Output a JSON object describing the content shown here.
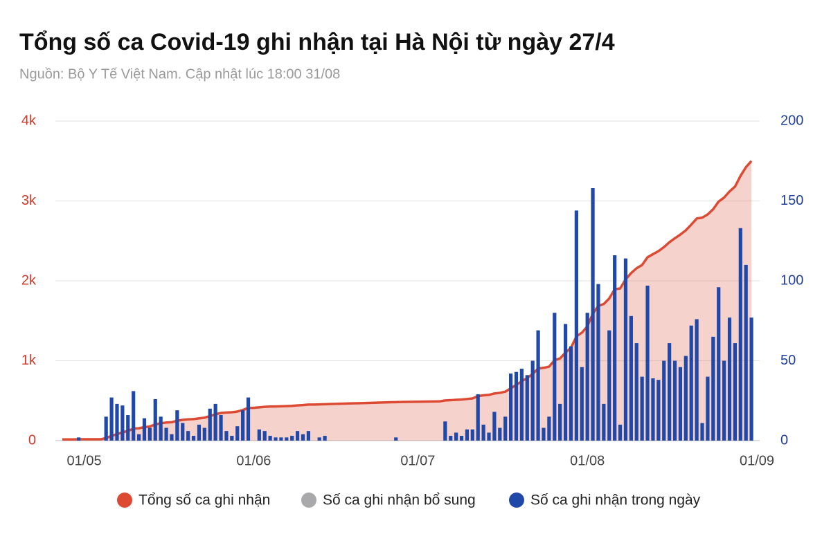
{
  "chart_data": {
    "type": "bar-line",
    "title": "Tổng số ca Covid-19 ghi nhận tại Hà Nội từ ngày 27/4",
    "subtitle": "Nguồn: Bộ Y Tế Việt Nam. Cập nhật lúc 18:00 31/08",
    "x": [
      "27/04",
      "28/04",
      "29/04",
      "30/04",
      "01/05",
      "02/05",
      "03/05",
      "04/05",
      "05/05",
      "06/05",
      "07/05",
      "08/05",
      "09/05",
      "10/05",
      "11/05",
      "12/05",
      "13/05",
      "14/05",
      "15/05",
      "16/05",
      "17/05",
      "18/05",
      "19/05",
      "20/05",
      "21/05",
      "22/05",
      "23/05",
      "24/05",
      "25/05",
      "26/05",
      "27/05",
      "28/05",
      "29/05",
      "30/05",
      "31/05",
      "01/06",
      "02/06",
      "03/06",
      "04/06",
      "05/06",
      "06/06",
      "07/06",
      "08/06",
      "09/06",
      "10/06",
      "11/06",
      "12/06",
      "13/06",
      "14/06",
      "15/06",
      "16/06",
      "17/06",
      "18/06",
      "19/06",
      "20/06",
      "21/06",
      "22/06",
      "23/06",
      "24/06",
      "25/06",
      "26/06",
      "27/06",
      "28/06",
      "29/06",
      "30/06",
      "01/07",
      "02/07",
      "03/07",
      "04/07",
      "05/07",
      "06/07",
      "07/07",
      "08/07",
      "09/07",
      "10/07",
      "11/07",
      "12/07",
      "13/07",
      "14/07",
      "15/07",
      "16/07",
      "17/07",
      "18/07",
      "19/07",
      "20/07",
      "21/07",
      "22/07",
      "23/07",
      "24/07",
      "25/07",
      "26/07",
      "27/07",
      "28/07",
      "29/07",
      "30/07",
      "31/07",
      "01/08",
      "02/08",
      "03/08",
      "04/08",
      "05/08",
      "06/08",
      "07/08",
      "08/08",
      "09/08",
      "10/08",
      "11/08",
      "12/08",
      "13/08",
      "14/08",
      "15/08",
      "16/08",
      "17/08",
      "18/08",
      "19/08",
      "20/08",
      "21/08",
      "22/08",
      "23/08",
      "24/08",
      "25/08",
      "26/08",
      "27/08",
      "28/08",
      "29/08",
      "30/08",
      "31/08"
    ],
    "xlim": [
      "27/04",
      "01/09"
    ],
    "xticks": [
      "01/05",
      "01/06",
      "01/07",
      "01/08",
      "01/09"
    ],
    "ylim": [
      0,
      4000
    ],
    "yticks": [
      0,
      {
        "value": 1000,
        "label": "1k"
      },
      {
        "value": 2000,
        "label": "2k"
      },
      {
        "value": 3000,
        "label": "3k"
      },
      {
        "value": 4000,
        "label": "4k"
      }
    ],
    "y2lim": [
      0,
      200
    ],
    "y2ticks": [
      0,
      50,
      100,
      150,
      200
    ],
    "grid": true,
    "legend": "bottom",
    "series": [
      {
        "name": "Tổng số ca ghi nhận",
        "color": "#dc4a33",
        "kind": "area-line",
        "axis": "y",
        "values": [
          15,
          15,
          15,
          17,
          17,
          17,
          17,
          17,
          32,
          59,
          82,
          104,
          120,
          151,
          155,
          169,
          177,
          203,
          218,
          226,
          230,
          249,
          260,
          266,
          269,
          279,
          287,
          307,
          330,
          346,
          352,
          355,
          364,
          383,
          410,
          410,
          417,
          423,
          426,
          428,
          430,
          432,
          435,
          441,
          445,
          451,
          451,
          453,
          456,
          458,
          460,
          462,
          464,
          466,
          468,
          470,
          472,
          474,
          476,
          478,
          480,
          482,
          484,
          485,
          486,
          487,
          488,
          489,
          490,
          491,
          503,
          506,
          511,
          514,
          521,
          528,
          557,
          567,
          572,
          590,
          598,
          613,
          655,
          698,
          743,
          784,
          834,
          903,
          911,
          926,
          1006,
          1029,
          1102,
          1161,
          1305,
          1351,
          1431,
          1589,
          1687,
          1710,
          1779,
          1895,
          1905,
          2019,
          2097,
          2158,
          2198,
          2295,
          2334,
          2372,
          2422,
          2483,
          2533,
          2579,
          2632,
          2704,
          2780,
          2791,
          2831,
          2896,
          2992,
          3042,
          3119,
          3180,
          3313,
          3423,
          3500
        ]
      },
      {
        "name": "Số ca ghi nhận bổ sung",
        "color": "#a9a9ab",
        "kind": "bar",
        "axis": "y2",
        "values": [
          0,
          0,
          0,
          0,
          0,
          0,
          0,
          0,
          0,
          0,
          0,
          0,
          0,
          0,
          0,
          0,
          0,
          0,
          0,
          0,
          0,
          0,
          0,
          0,
          0,
          0,
          0,
          0,
          0,
          0,
          0,
          0,
          0,
          0,
          0,
          0,
          0,
          0,
          0,
          0,
          0,
          0,
          0,
          0,
          0,
          0,
          0,
          0,
          0,
          0,
          0,
          0,
          0,
          0,
          0,
          0,
          0,
          0,
          0,
          0,
          0,
          0,
          0,
          0,
          0,
          0,
          0,
          0,
          0,
          0,
          0,
          0,
          0,
          0,
          0,
          0,
          0,
          0,
          0,
          0,
          0,
          0,
          0,
          0,
          0,
          0,
          0,
          0,
          0,
          0,
          0,
          0,
          0,
          0,
          0,
          0,
          0,
          0,
          0,
          0,
          0,
          0,
          0,
          0,
          0,
          0,
          0,
          0,
          0,
          0,
          0,
          0,
          0,
          0,
          0,
          0,
          0,
          0,
          0,
          0,
          0,
          0,
          0,
          0,
          0,
          0,
          0
        ]
      },
      {
        "name": "Số ca ghi nhận trong ngày",
        "color": "#1f48a8",
        "kind": "bar",
        "axis": "y2",
        "values": [
          0,
          0,
          0,
          2,
          0,
          0,
          0,
          0,
          15,
          27,
          23,
          22,
          16,
          31,
          4,
          14,
          8,
          26,
          15,
          8,
          4,
          19,
          11,
          6,
          3,
          10,
          8,
          20,
          23,
          16,
          6,
          3,
          9,
          19,
          27,
          0,
          7,
          6,
          3,
          2,
          2,
          2,
          3,
          6,
          4,
          6,
          0,
          2,
          3,
          0,
          0,
          0,
          0,
          0,
          0,
          0,
          0,
          0,
          0,
          0,
          0,
          2,
          0,
          0,
          0,
          0,
          0,
          0,
          0,
          0,
          12,
          3,
          5,
          3,
          7,
          7,
          29,
          10,
          5,
          18,
          8,
          15,
          42,
          43,
          45,
          41,
          50,
          69,
          8,
          15,
          80,
          23,
          73,
          59,
          144,
          46,
          80,
          158,
          98,
          23,
          69,
          116,
          10,
          114,
          78,
          61,
          40,
          97,
          39,
          38,
          50,
          61,
          50,
          46,
          53,
          72,
          76,
          11,
          40,
          65,
          96,
          50,
          77,
          61,
          133,
          110,
          77
        ]
      }
    ]
  }
}
